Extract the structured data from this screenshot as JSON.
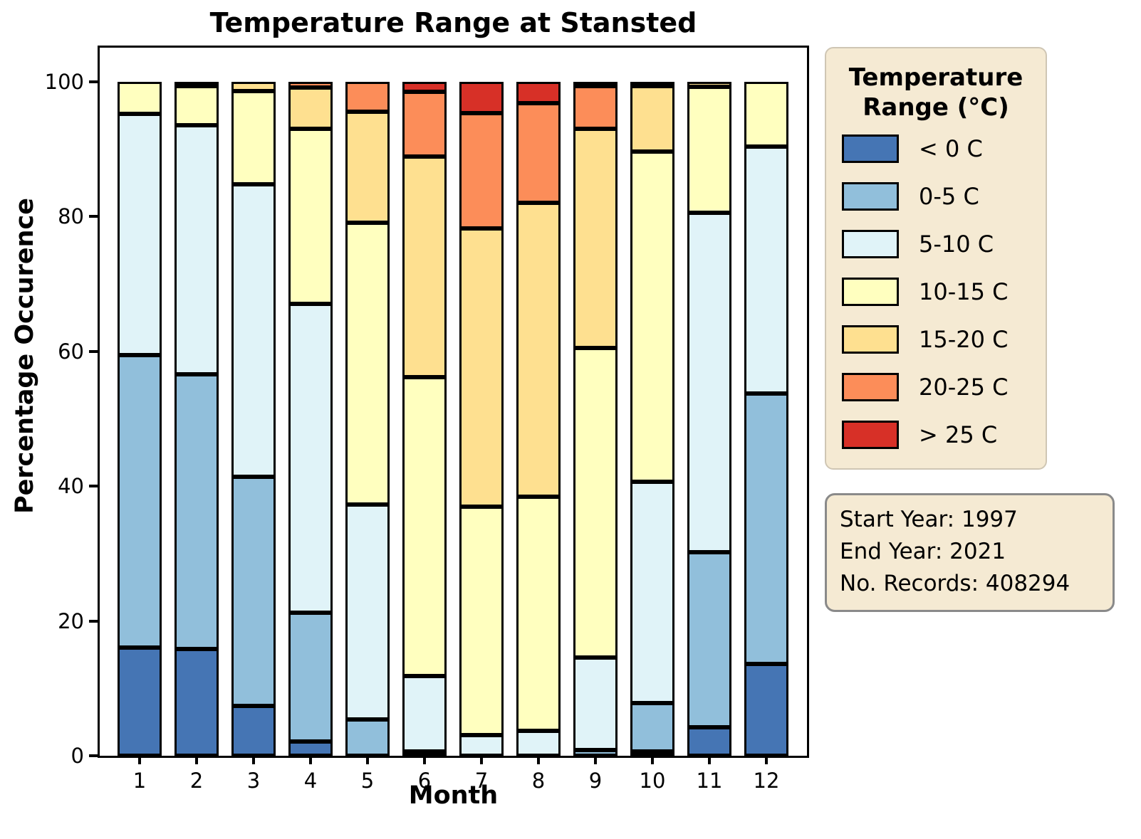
{
  "title": "Temperature Range at Stansted",
  "xlabel": "Month",
  "ylabel": "Percentage Occurence",
  "legend": {
    "title_lines": [
      "Temperature",
      "Range (°C)"
    ]
  },
  "info_box": {
    "lines": [
      "Start Year: 1997",
      "End Year: 2021",
      "No. Records: 408294"
    ]
  },
  "chart_data": {
    "type": "bar",
    "stacked": true,
    "title": "Temperature Range at Stansted",
    "xlabel": "Month",
    "ylabel": "Percentage Occurence",
    "ylim": [
      0,
      100
    ],
    "yticks": [
      0,
      20,
      40,
      60,
      80,
      100
    ],
    "grid": false,
    "legend_position": "right",
    "legend_title": "Temperature Range (°C)",
    "categories": [
      "1",
      "2",
      "3",
      "4",
      "5",
      "6",
      "7",
      "8",
      "9",
      "10",
      "11",
      "12"
    ],
    "series": [
      {
        "name": "< 0 C",
        "color": "#4575b4",
        "values": [
          16.1,
          15.9,
          7.4,
          2.1,
          0,
          0,
          0,
          0,
          0,
          0.4,
          4.2,
          13.6
        ]
      },
      {
        "name": "0-5 C",
        "color": "#91bfdb",
        "values": [
          43.4,
          41.0,
          34.0,
          19.1,
          5.4,
          0.5,
          0,
          0,
          0.8,
          7.2,
          26.0,
          40.2
        ]
      },
      {
        "name": "5-10 C",
        "color": "#e0f3f8",
        "values": [
          35.7,
          37.1,
          43.4,
          45.9,
          31.9,
          11.2,
          3.1,
          3.7,
          13.8,
          33.0,
          50.4,
          36.6
        ]
      },
      {
        "name": "10-15 C",
        "color": "#ffffbf",
        "values": [
          4.8,
          5.8,
          13.8,
          25.9,
          41.8,
          44.4,
          33.9,
          34.7,
          45.9,
          49.3,
          18.7,
          9.6
        ]
      },
      {
        "name": "15-20 C",
        "color": "#fee090",
        "values": [
          0,
          0.2,
          1.4,
          6.2,
          16.5,
          32.8,
          41.3,
          43.7,
          32.6,
          9.8,
          0.7,
          0
        ]
      },
      {
        "name": "20-25 C",
        "color": "#fc8d59",
        "values": [
          0,
          0,
          0,
          0.8,
          4.4,
          9.6,
          17.1,
          14.7,
          6.3,
          0.3,
          0,
          0
        ]
      },
      {
        "name": "> 25 C",
        "color": "#d73027",
        "values": [
          0,
          0,
          0,
          0,
          0,
          1.5,
          4.6,
          3.2,
          0.6,
          0,
          0,
          0
        ]
      }
    ]
  }
}
